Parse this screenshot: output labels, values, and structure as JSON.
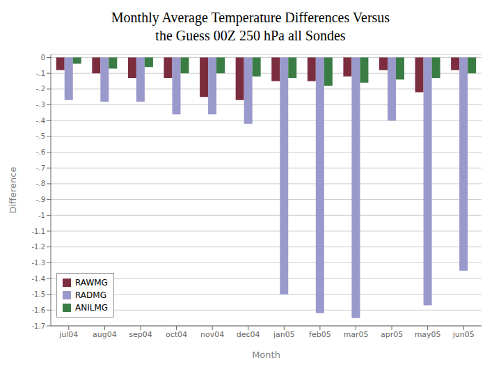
{
  "chart_data": {
    "type": "bar",
    "title": "Monthly Average Temperature Differences Versus\nthe Guess 00Z 250 hPa all Sondes",
    "xlabel": "Month",
    "ylabel": "Difference",
    "categories": [
      "jul04",
      "aug04",
      "sep04",
      "oct04",
      "nov04",
      "dec04",
      "jan05",
      "feb05",
      "mar05",
      "apr05",
      "may05",
      "jun05"
    ],
    "series": [
      {
        "name": "RAWMG",
        "color": "#7B2D3E",
        "values": [
          -0.08,
          -0.1,
          -0.13,
          -0.13,
          -0.25,
          -0.27,
          -0.15,
          -0.15,
          -0.12,
          -0.08,
          -0.22,
          -0.08
        ]
      },
      {
        "name": "RADMG",
        "color": "#9999CC",
        "values": [
          -0.27,
          -0.28,
          -0.28,
          -0.36,
          -0.36,
          -0.42,
          -1.5,
          -1.62,
          -1.65,
          -0.4,
          -1.57,
          -1.35
        ]
      },
      {
        "name": "ANILMG",
        "color": "#3A7D44",
        "values": [
          -0.04,
          -0.07,
          -0.06,
          -0.1,
          -0.1,
          -0.12,
          -0.13,
          -0.18,
          -0.16,
          -0.14,
          -0.13,
          -0.1
        ]
      }
    ],
    "ylim": [
      -1.7,
      0.02
    ],
    "yticks": [
      0,
      {
        "value": -0.1,
        "label": "-.1"
      },
      {
        "value": -0.2,
        "label": "-.2"
      },
      {
        "value": -0.3,
        "label": "-.3"
      },
      {
        "value": -0.4,
        "label": "-.4"
      },
      {
        "value": -0.5,
        "label": "-.5"
      },
      {
        "value": -0.6,
        "label": "-.6"
      },
      {
        "value": -0.7,
        "label": "-.7"
      },
      {
        "value": -0.8,
        "label": "-.8"
      },
      {
        "value": -0.9,
        "label": "-.9"
      },
      -1,
      -1.1,
      -1.2,
      -1.3,
      -1.4,
      -1.5,
      -1.6,
      -1.7
    ],
    "grid": true,
    "legend": "lower left"
  }
}
